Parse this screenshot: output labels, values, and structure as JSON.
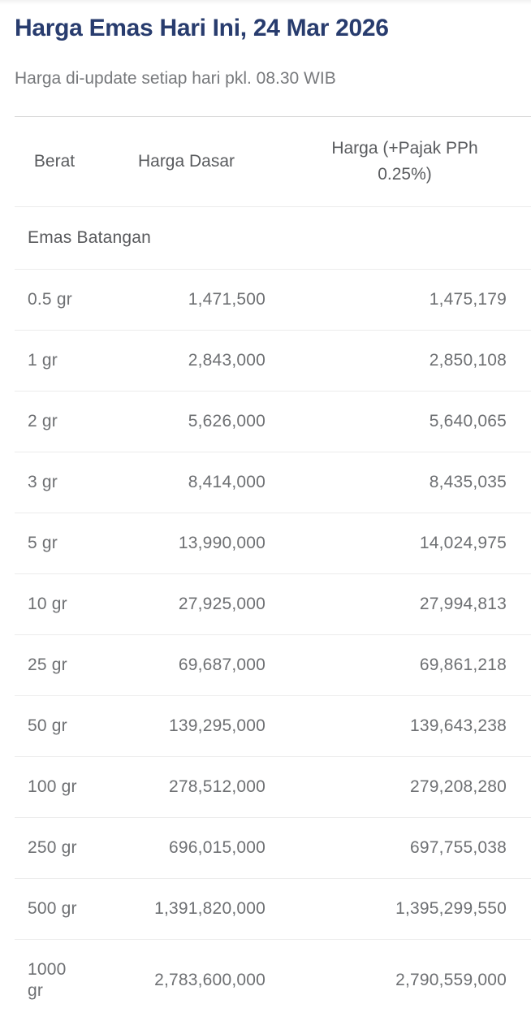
{
  "page": {
    "title": "Harga Emas Hari Ini, 24 Mar 2026",
    "subtitle": "Harga di-update setiap hari pkl. 08.30 WIB"
  },
  "colors": {
    "title_navy": "#283c6e",
    "heading_gray": "#595b5e",
    "data_gray": "#6e7073",
    "divider": "#ececec",
    "top_divider": "#d9d9d9"
  },
  "table": {
    "columns": [
      "Berat",
      "Harga Dasar",
      "Harga (+Pajak PPh 0.25%)"
    ],
    "section_label": "Emas Batangan",
    "rows": [
      {
        "weight": "0.5 gr",
        "base_price": "1,471,500",
        "taxed_price": "1,475,179"
      },
      {
        "weight": "1 gr",
        "base_price": "2,843,000",
        "taxed_price": "2,850,108"
      },
      {
        "weight": "2 gr",
        "base_price": "5,626,000",
        "taxed_price": "5,640,065"
      },
      {
        "weight": "3 gr",
        "base_price": "8,414,000",
        "taxed_price": "8,435,035"
      },
      {
        "weight": "5 gr",
        "base_price": "13,990,000",
        "taxed_price": "14,024,975"
      },
      {
        "weight": "10 gr",
        "base_price": "27,925,000",
        "taxed_price": "27,994,813"
      },
      {
        "weight": "25 gr",
        "base_price": "69,687,000",
        "taxed_price": "69,861,218"
      },
      {
        "weight": "50 gr",
        "base_price": "139,295,000",
        "taxed_price": "139,643,238"
      },
      {
        "weight": "100 gr",
        "base_price": "278,512,000",
        "taxed_price": "279,208,280"
      },
      {
        "weight": "250 gr",
        "base_price": "696,015,000",
        "taxed_price": "697,755,038"
      },
      {
        "weight": "500 gr",
        "base_price": "1,391,820,000",
        "taxed_price": "1,395,299,550"
      },
      {
        "weight": "1000 gr",
        "base_price": "2,783,600,000",
        "taxed_price": "2,790,559,000"
      }
    ]
  }
}
